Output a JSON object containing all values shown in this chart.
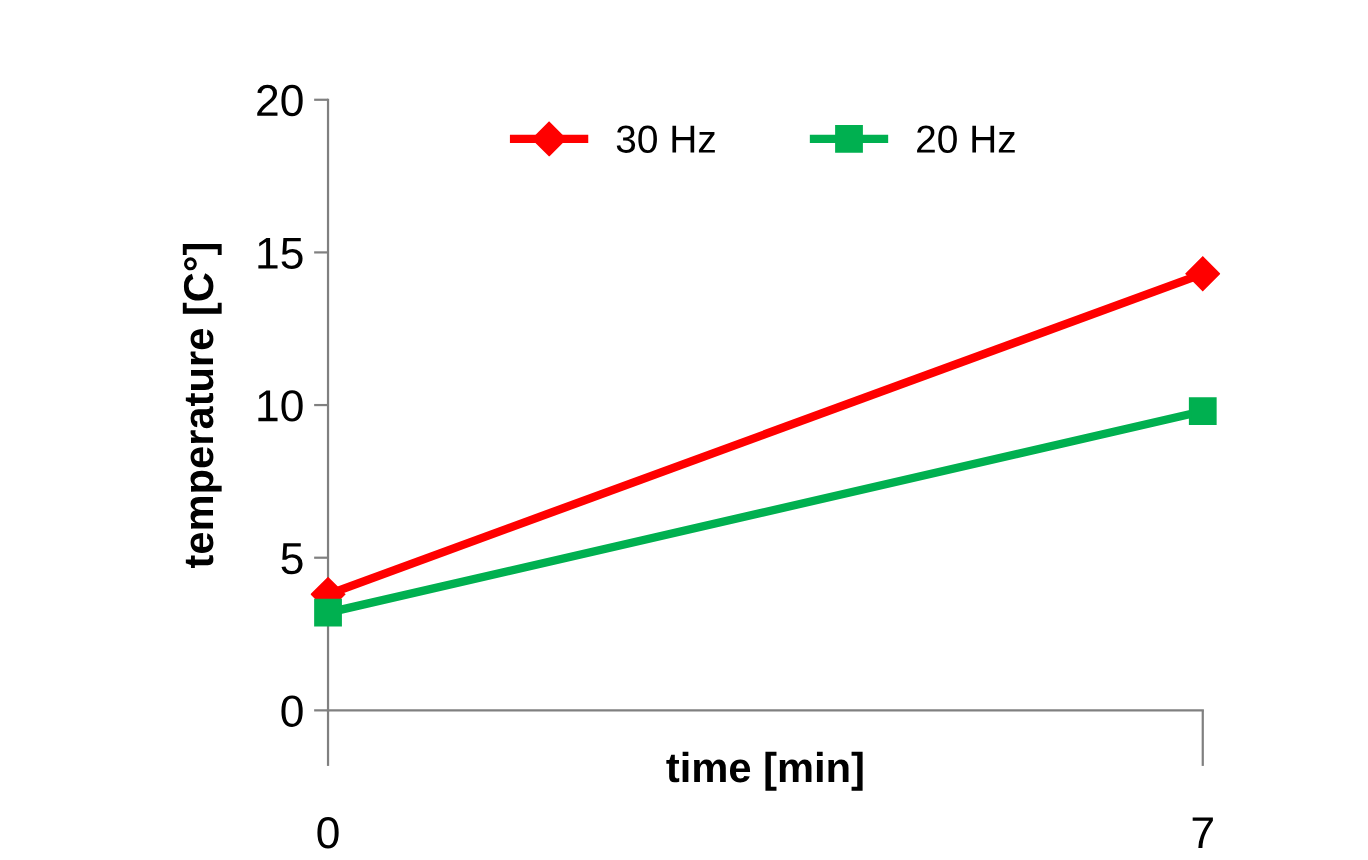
{
  "chart_data": {
    "type": "line",
    "xlabel": "time [min]",
    "ylabel": "temperature [C°]",
    "x": [
      0,
      7
    ],
    "xlim": [
      0,
      7
    ],
    "xticks": [
      0,
      7
    ],
    "series": [
      {
        "name": "30 Hz",
        "color": "#ff0000",
        "values": [
          3.8,
          14.3
        ],
        "marker": "diamond"
      },
      {
        "name": "20 Hz",
        "color": "#00b050",
        "values": [
          3.2,
          9.8
        ],
        "marker": "square"
      }
    ],
    "ylim": [
      0,
      20
    ],
    "yticks": [
      0,
      5,
      10,
      15,
      20
    ],
    "grid": false,
    "legend": "top",
    "line_style": "solid"
  }
}
